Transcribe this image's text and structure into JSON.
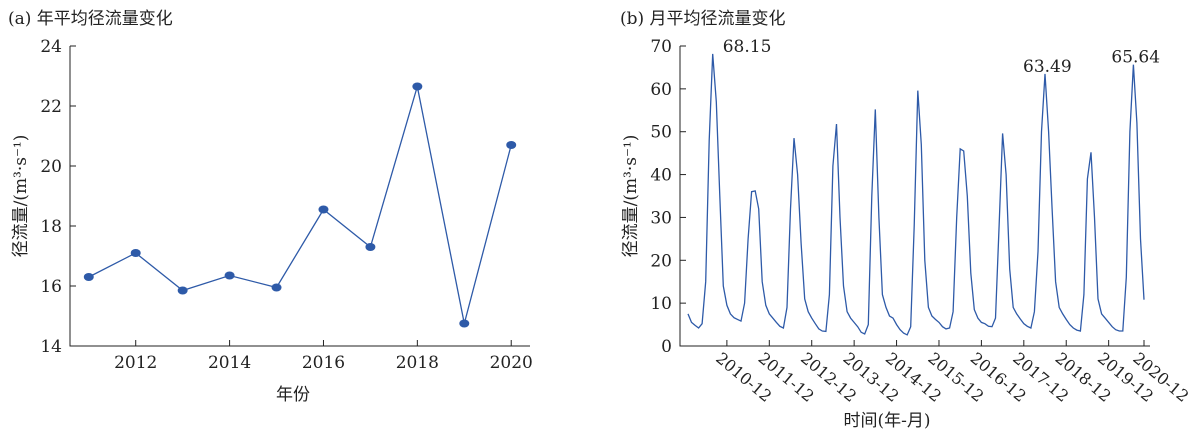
{
  "chart_data": [
    {
      "type": "line",
      "title": "(a) 年平均径流量变化",
      "xlabel": "年份",
      "ylabel": "径流量/(m³·s⁻¹)",
      "xlim": [
        2010.6,
        2020.4
      ],
      "ylim": [
        14,
        24
      ],
      "x_ticks": [
        2012,
        2014,
        2016,
        2018,
        2020
      ],
      "y_ticks": [
        14,
        16,
        18,
        20,
        22,
        24
      ],
      "series": [
        {
          "x": [
            2011,
            2012,
            2013,
            2014,
            2015,
            2016,
            2017,
            2018,
            2019,
            2020
          ],
          "values": [
            16.3,
            17.1,
            15.85,
            16.35,
            15.95,
            18.55,
            17.3,
            22.65,
            14.75,
            20.7
          ]
        }
      ],
      "markers": true,
      "grid": false,
      "color": "#2e5aa8"
    },
    {
      "type": "line",
      "title": "(b) 月平均径流量变化",
      "xlabel": "时间(年-月)",
      "ylabel": "径流量/(m³·s⁻¹)",
      "ylim": [
        0,
        70
      ],
      "y_ticks": [
        0,
        10,
        20,
        30,
        40,
        50,
        60,
        70
      ],
      "x_tick_labels": [
        "2010-12",
        "2011-12",
        "2012-12",
        "2013-12",
        "2014-12",
        "2015-12",
        "2016-12",
        "2017-12",
        "2018-12",
        "2019-12",
        "2020-12"
      ],
      "annotations": [
        "68.15",
        "63.49",
        "65.64"
      ],
      "series": [
        {
          "values": [
            7.5,
            5.5,
            4.8,
            4.2,
            5.2,
            15,
            48,
            68.15,
            57,
            35,
            14,
            9.5,
            7.5,
            6.6,
            6.2,
            5.8,
            10,
            25,
            36,
            36.2,
            32,
            15,
            9.5,
            7.5,
            6.5,
            5.5,
            4.6,
            4.2,
            9,
            32,
            48.5,
            40,
            24,
            11,
            8,
            6.5,
            5.2,
            4.0,
            3.5,
            3.4,
            12,
            42,
            51.8,
            30,
            14,
            8,
            6.5,
            5.5,
            4.5,
            3.2,
            2.8,
            5,
            35,
            55.2,
            30,
            12,
            9,
            7,
            6.5,
            5,
            3.8,
            3.0,
            2.6,
            4.5,
            28,
            59.6,
            47,
            20,
            9,
            7,
            6.2,
            5.5,
            4.5,
            4.0,
            4.2,
            8,
            30,
            46,
            45.5,
            35,
            17,
            8.5,
            6.5,
            5.5,
            5.2,
            4.6,
            4.5,
            6.5,
            28,
            49.6,
            40,
            18,
            9,
            7.5,
            6.3,
            5.2,
            4.6,
            4.2,
            8,
            22,
            50,
            63.49,
            50,
            32,
            15,
            9,
            7.5,
            6.2,
            5.0,
            4.2,
            3.7,
            3.5,
            12,
            39,
            45.2,
            30,
            11,
            7.5,
            6.5,
            5.5,
            4.5,
            3.8,
            3.5,
            3.5,
            16,
            50,
            65.64,
            52,
            25,
            10.8
          ]
        }
      ],
      "grid": false,
      "color": "#2e5aa8"
    }
  ]
}
